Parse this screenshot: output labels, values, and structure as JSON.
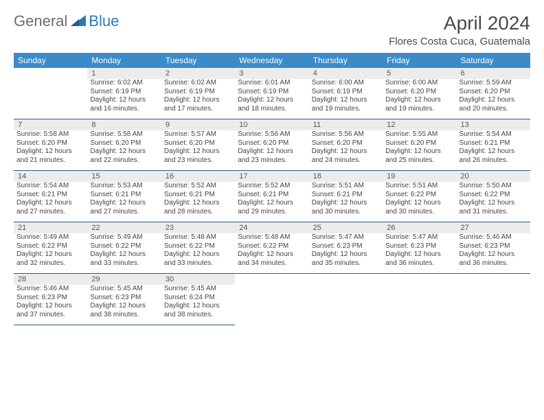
{
  "brand": {
    "part1": "General",
    "part2": "Blue"
  },
  "title": "April 2024",
  "location": "Flores Costa Cuca, Guatemala",
  "colors": {
    "header_bg": "#3b8bc9",
    "header_text": "#ffffff",
    "daynum_bg": "#ececec",
    "divider": "#2a5a8a",
    "logo_gray": "#6b6b6b",
    "logo_blue": "#2a7ab9"
  },
  "weekdays": [
    "Sunday",
    "Monday",
    "Tuesday",
    "Wednesday",
    "Thursday",
    "Friday",
    "Saturday"
  ],
  "weeks": [
    {
      "nums": [
        "",
        "1",
        "2",
        "3",
        "4",
        "5",
        "6"
      ],
      "cells": [
        null,
        {
          "sr": "6:02 AM",
          "ss": "6:19 PM",
          "dl": "12 hours and 16 minutes."
        },
        {
          "sr": "6:02 AM",
          "ss": "6:19 PM",
          "dl": "12 hours and 17 minutes."
        },
        {
          "sr": "6:01 AM",
          "ss": "6:19 PM",
          "dl": "12 hours and 18 minutes."
        },
        {
          "sr": "6:00 AM",
          "ss": "6:19 PM",
          "dl": "12 hours and 19 minutes."
        },
        {
          "sr": "6:00 AM",
          "ss": "6:20 PM",
          "dl": "12 hours and 19 minutes."
        },
        {
          "sr": "5:59 AM",
          "ss": "6:20 PM",
          "dl": "12 hours and 20 minutes."
        }
      ]
    },
    {
      "nums": [
        "7",
        "8",
        "9",
        "10",
        "11",
        "12",
        "13"
      ],
      "cells": [
        {
          "sr": "5:58 AM",
          "ss": "6:20 PM",
          "dl": "12 hours and 21 minutes."
        },
        {
          "sr": "5:58 AM",
          "ss": "6:20 PM",
          "dl": "12 hours and 22 minutes."
        },
        {
          "sr": "5:57 AM",
          "ss": "6:20 PM",
          "dl": "12 hours and 23 minutes."
        },
        {
          "sr": "5:56 AM",
          "ss": "6:20 PM",
          "dl": "12 hours and 23 minutes."
        },
        {
          "sr": "5:56 AM",
          "ss": "6:20 PM",
          "dl": "12 hours and 24 minutes."
        },
        {
          "sr": "5:55 AM",
          "ss": "6:20 PM",
          "dl": "12 hours and 25 minutes."
        },
        {
          "sr": "5:54 AM",
          "ss": "6:21 PM",
          "dl": "12 hours and 26 minutes."
        }
      ]
    },
    {
      "nums": [
        "14",
        "15",
        "16",
        "17",
        "18",
        "19",
        "20"
      ],
      "cells": [
        {
          "sr": "5:54 AM",
          "ss": "6:21 PM",
          "dl": "12 hours and 27 minutes."
        },
        {
          "sr": "5:53 AM",
          "ss": "6:21 PM",
          "dl": "12 hours and 27 minutes."
        },
        {
          "sr": "5:52 AM",
          "ss": "6:21 PM",
          "dl": "12 hours and 28 minutes."
        },
        {
          "sr": "5:52 AM",
          "ss": "6:21 PM",
          "dl": "12 hours and 29 minutes."
        },
        {
          "sr": "5:51 AM",
          "ss": "6:21 PM",
          "dl": "12 hours and 30 minutes."
        },
        {
          "sr": "5:51 AM",
          "ss": "6:22 PM",
          "dl": "12 hours and 30 minutes."
        },
        {
          "sr": "5:50 AM",
          "ss": "6:22 PM",
          "dl": "12 hours and 31 minutes."
        }
      ]
    },
    {
      "nums": [
        "21",
        "22",
        "23",
        "24",
        "25",
        "26",
        "27"
      ],
      "cells": [
        {
          "sr": "5:49 AM",
          "ss": "6:22 PM",
          "dl": "12 hours and 32 minutes."
        },
        {
          "sr": "5:49 AM",
          "ss": "6:22 PM",
          "dl": "12 hours and 33 minutes."
        },
        {
          "sr": "5:48 AM",
          "ss": "6:22 PM",
          "dl": "12 hours and 33 minutes."
        },
        {
          "sr": "5:48 AM",
          "ss": "6:22 PM",
          "dl": "12 hours and 34 minutes."
        },
        {
          "sr": "5:47 AM",
          "ss": "6:23 PM",
          "dl": "12 hours and 35 minutes."
        },
        {
          "sr": "5:47 AM",
          "ss": "6:23 PM",
          "dl": "12 hours and 36 minutes."
        },
        {
          "sr": "5:46 AM",
          "ss": "6:23 PM",
          "dl": "12 hours and 36 minutes."
        }
      ]
    },
    {
      "nums": [
        "28",
        "29",
        "30",
        "",
        "",
        "",
        ""
      ],
      "cells": [
        {
          "sr": "5:46 AM",
          "ss": "6:23 PM",
          "dl": "12 hours and 37 minutes."
        },
        {
          "sr": "5:45 AM",
          "ss": "6:23 PM",
          "dl": "12 hours and 38 minutes."
        },
        {
          "sr": "5:45 AM",
          "ss": "6:24 PM",
          "dl": "12 hours and 38 minutes."
        },
        null,
        null,
        null,
        null
      ]
    }
  ],
  "labels": {
    "sunrise": "Sunrise:",
    "sunset": "Sunset:",
    "daylight": "Daylight:"
  }
}
